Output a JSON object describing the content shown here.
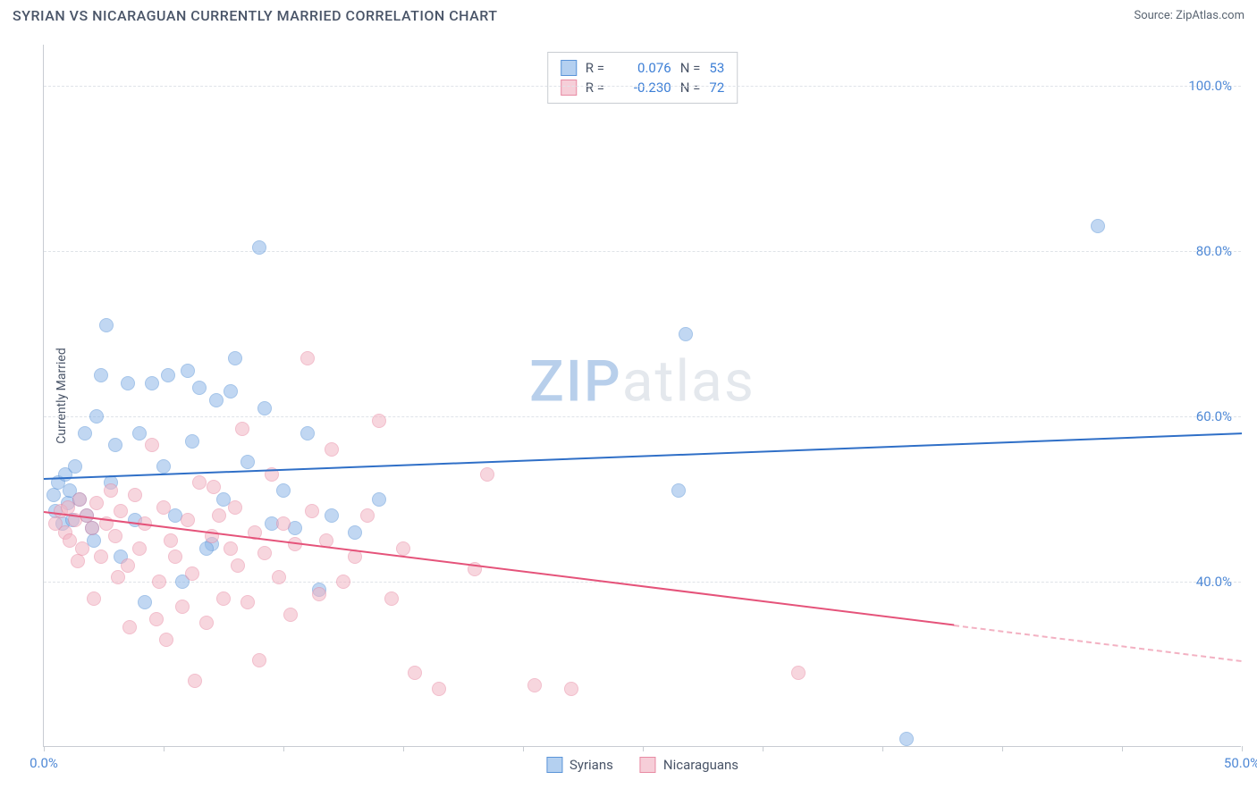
{
  "header": {
    "title": "SYRIAN VS NICARAGUAN CURRENTLY MARRIED CORRELATION CHART",
    "source": "Source: ZipAtlas.com"
  },
  "chart": {
    "type": "scatter",
    "y_axis_title": "Currently Married",
    "xlim": [
      0,
      50
    ],
    "ylim": [
      20,
      105
    ],
    "y_ticks": [
      40,
      60,
      80,
      100
    ],
    "y_tick_labels": [
      "40.0%",
      "60.0%",
      "80.0%",
      "100.0%"
    ],
    "x_ticks": [
      0,
      5,
      10,
      15,
      20,
      25,
      30,
      35,
      40,
      45,
      50
    ],
    "x_tick_labels": {
      "0": "0.0%",
      "50": "50.0%"
    },
    "grid_color": "#dfe3e8",
    "axis_color": "#c8ccd2",
    "background_color": "#ffffff",
    "point_radius": 8,
    "point_opacity": 0.55,
    "series": [
      {
        "name": "Syrians",
        "fill": "#8fb8e8",
        "stroke": "#5a94d8",
        "trend_color": "#2f6fc7",
        "r_value": "0.076",
        "n_value": "53",
        "trend": {
          "x1": 0,
          "y1": 52.5,
          "x2": 50,
          "y2": 58.0,
          "dash_from_x": null
        },
        "points": [
          [
            0.4,
            50.5
          ],
          [
            0.5,
            48.5
          ],
          [
            0.6,
            52.0
          ],
          [
            0.8,
            47.0
          ],
          [
            0.9,
            53.0
          ],
          [
            1.0,
            49.5
          ],
          [
            1.1,
            51.0
          ],
          [
            1.2,
            47.5
          ],
          [
            1.3,
            54.0
          ],
          [
            1.5,
            50.0
          ],
          [
            1.7,
            58.0
          ],
          [
            1.8,
            48.0
          ],
          [
            2.0,
            46.5
          ],
          [
            2.2,
            60.0
          ],
          [
            2.4,
            65.0
          ],
          [
            2.6,
            71.0
          ],
          [
            2.8,
            52.0
          ],
          [
            3.0,
            56.5
          ],
          [
            3.5,
            64.0
          ],
          [
            3.8,
            47.5
          ],
          [
            4.0,
            58.0
          ],
          [
            4.5,
            64.0
          ],
          [
            5.0,
            54.0
          ],
          [
            5.2,
            65.0
          ],
          [
            5.5,
            48.0
          ],
          [
            6.0,
            65.5
          ],
          [
            6.2,
            57.0
          ],
          [
            6.5,
            63.5
          ],
          [
            7.0,
            44.5
          ],
          [
            7.2,
            62.0
          ],
          [
            7.5,
            50.0
          ],
          [
            8.0,
            67.0
          ],
          [
            8.5,
            54.5
          ],
          [
            9.0,
            80.5
          ],
          [
            9.2,
            61.0
          ],
          [
            9.5,
            47.0
          ],
          [
            10.0,
            51.0
          ],
          [
            10.5,
            46.5
          ],
          [
            11.0,
            58.0
          ],
          [
            11.5,
            39.0
          ],
          [
            12.0,
            48.0
          ],
          [
            13.0,
            46.0
          ],
          [
            14.0,
            50.0
          ],
          [
            26.5,
            51.0
          ],
          [
            26.8,
            70.0
          ],
          [
            36.0,
            21.0
          ],
          [
            44.0,
            83.0
          ],
          [
            4.2,
            37.5
          ],
          [
            6.8,
            44.0
          ],
          [
            3.2,
            43.0
          ],
          [
            2.1,
            45.0
          ],
          [
            5.8,
            40.0
          ],
          [
            7.8,
            63.0
          ]
        ]
      },
      {
        "name": "Nicaraguans",
        "fill": "#f2b5c4",
        "stroke": "#e88aa3",
        "trend_color": "#e5537a",
        "r_value": "-0.230",
        "n_value": "72",
        "trend": {
          "x1": 0,
          "y1": 48.5,
          "x2": 50,
          "y2": 30.5,
          "dash_from_x": 38
        },
        "points": [
          [
            0.5,
            47.0
          ],
          [
            0.7,
            48.5
          ],
          [
            0.9,
            46.0
          ],
          [
            1.0,
            49.0
          ],
          [
            1.1,
            45.0
          ],
          [
            1.3,
            47.5
          ],
          [
            1.5,
            50.0
          ],
          [
            1.6,
            44.0
          ],
          [
            1.8,
            48.0
          ],
          [
            2.0,
            46.5
          ],
          [
            2.2,
            49.5
          ],
          [
            2.4,
            43.0
          ],
          [
            2.6,
            47.0
          ],
          [
            2.8,
            51.0
          ],
          [
            3.0,
            45.5
          ],
          [
            3.2,
            48.5
          ],
          [
            3.5,
            42.0
          ],
          [
            3.8,
            50.5
          ],
          [
            4.0,
            44.0
          ],
          [
            4.2,
            47.0
          ],
          [
            4.5,
            56.5
          ],
          [
            4.8,
            40.0
          ],
          [
            5.0,
            49.0
          ],
          [
            5.3,
            45.0
          ],
          [
            5.5,
            43.0
          ],
          [
            5.8,
            37.0
          ],
          [
            6.0,
            47.5
          ],
          [
            6.2,
            41.0
          ],
          [
            6.5,
            52.0
          ],
          [
            6.8,
            35.0
          ],
          [
            7.0,
            45.5
          ],
          [
            7.3,
            48.0
          ],
          [
            7.5,
            38.0
          ],
          [
            7.8,
            44.0
          ],
          [
            8.0,
            49.0
          ],
          [
            8.3,
            58.5
          ],
          [
            8.5,
            37.5
          ],
          [
            8.8,
            46.0
          ],
          [
            9.0,
            30.5
          ],
          [
            9.2,
            43.5
          ],
          [
            9.5,
            53.0
          ],
          [
            9.8,
            40.5
          ],
          [
            10.0,
            47.0
          ],
          [
            10.3,
            36.0
          ],
          [
            10.5,
            44.5
          ],
          [
            11.0,
            67.0
          ],
          [
            11.2,
            48.5
          ],
          [
            11.5,
            38.5
          ],
          [
            11.8,
            45.0
          ],
          [
            12.0,
            56.0
          ],
          [
            12.5,
            40.0
          ],
          [
            13.0,
            43.0
          ],
          [
            13.5,
            48.0
          ],
          [
            14.0,
            59.5
          ],
          [
            14.5,
            38.0
          ],
          [
            15.0,
            44.0
          ],
          [
            15.5,
            29.0
          ],
          [
            16.5,
            27.0
          ],
          [
            18.0,
            41.5
          ],
          [
            18.5,
            53.0
          ],
          [
            20.5,
            27.5
          ],
          [
            22.0,
            27.0
          ],
          [
            31.5,
            29.0
          ],
          [
            2.1,
            38.0
          ],
          [
            3.6,
            34.5
          ],
          [
            5.1,
            33.0
          ],
          [
            6.3,
            28.0
          ],
          [
            7.1,
            51.5
          ],
          [
            8.1,
            42.0
          ],
          [
            4.7,
            35.5
          ],
          [
            3.1,
            40.5
          ],
          [
            1.4,
            42.5
          ]
        ]
      }
    ],
    "watermark": {
      "zip": "ZIP",
      "atlas": "atlas"
    },
    "bottom_legend": [
      "Syrians",
      "Nicaraguans"
    ]
  }
}
